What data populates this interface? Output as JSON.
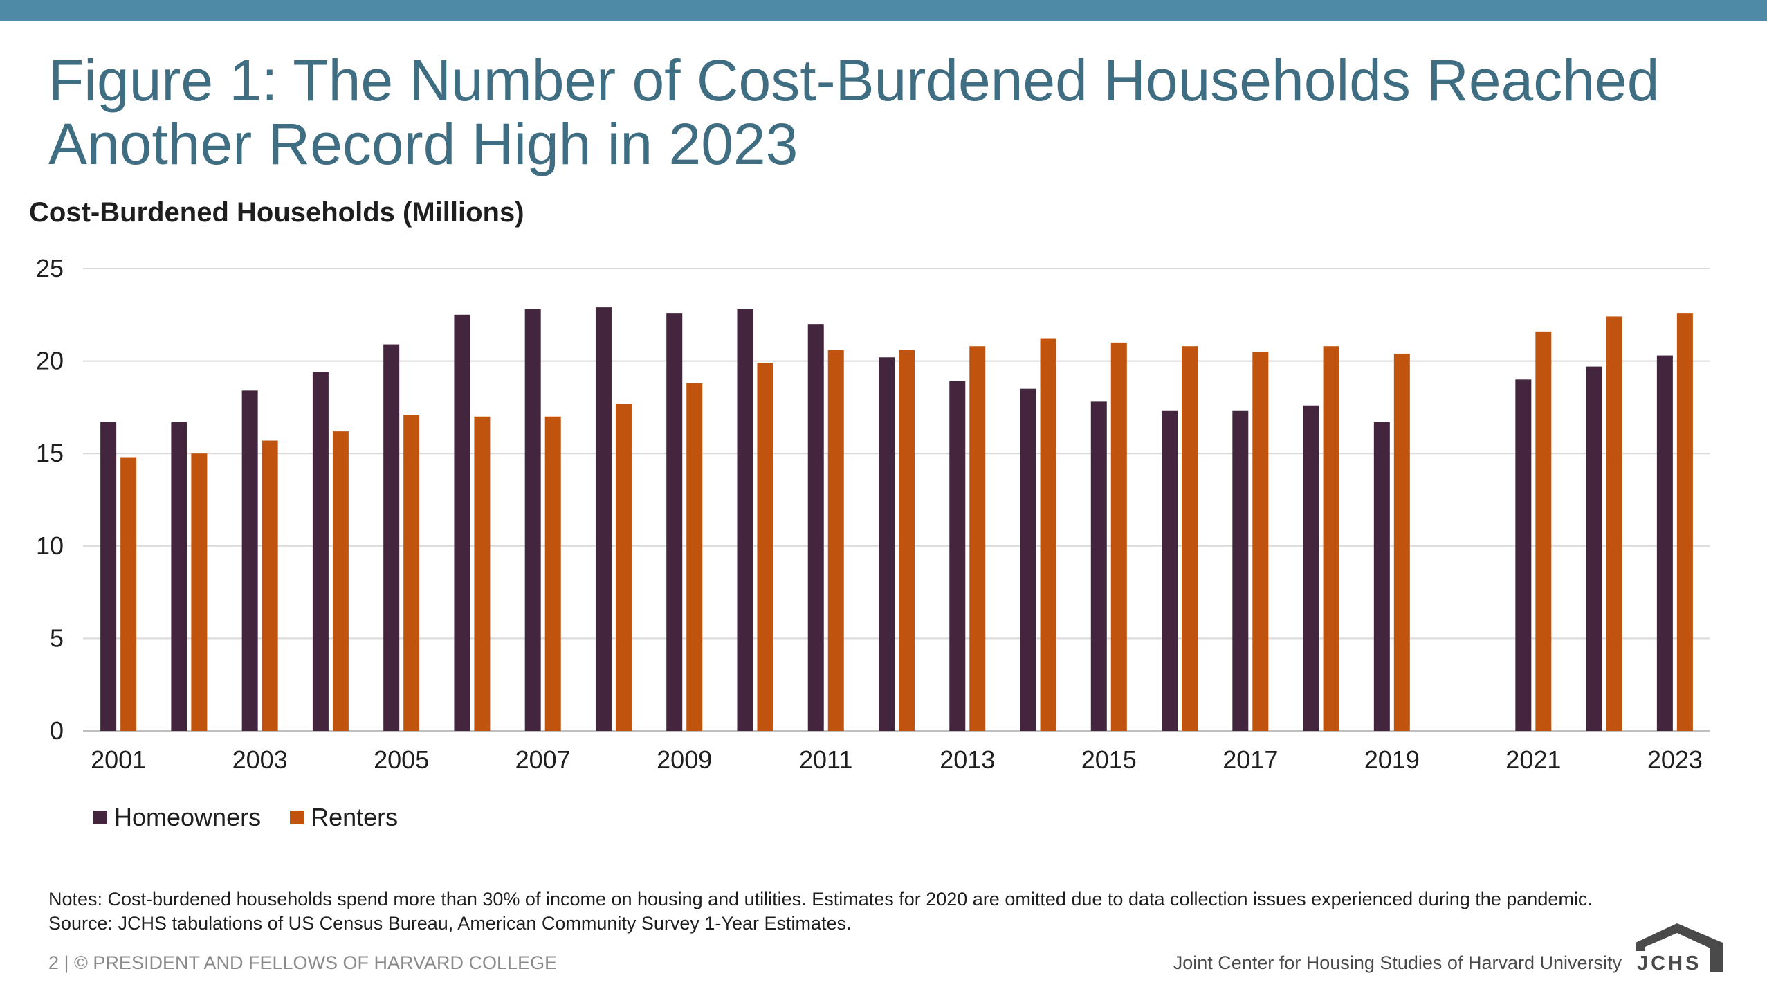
{
  "title": "Figure 1: The Number of Cost-Burdened Households Reached Another Record High in 2023",
  "notes": "Notes: Cost-burdened households spend more than 30% of income on housing and utilities. Estimates for 2020 are omitted due to data collection issues experienced during the pandemic.",
  "source": "Source: JCHS tabulations of US Census Bureau, American Community Survey 1-Year Estimates.",
  "footer": {
    "left": "2 | © PRESIDENT AND FELLOWS OF HARVARD COLLEGE",
    "right": "Joint Center for Housing Studies of Harvard University",
    "logo_text": "JCHS"
  },
  "colors": {
    "accent_band": "#4e8aa6",
    "homeowners": "#43263d",
    "renters": "#c0530d",
    "grid": "#d9d9d9"
  },
  "chart_data": {
    "type": "bar",
    "title": "",
    "ylabel": "Cost-Burdened Households (Millions)",
    "xlabel": "",
    "categories": [
      "2001",
      "2002",
      "2003",
      "2004",
      "2005",
      "2006",
      "2007",
      "2008",
      "2009",
      "2010",
      "2011",
      "2012",
      "2013",
      "2014",
      "2015",
      "2016",
      "2017",
      "2018",
      "2019",
      "2020",
      "2021",
      "2022",
      "2023"
    ],
    "x_tick_labels": [
      "2001",
      "",
      "2003",
      "",
      "2005",
      "",
      "2007",
      "",
      "2009",
      "",
      "2011",
      "",
      "2013",
      "",
      "2015",
      "",
      "2017",
      "",
      "2019",
      "",
      "2021",
      "",
      "2023"
    ],
    "series": [
      {
        "name": "Homeowners",
        "color": "#43263d",
        "values": [
          16.7,
          16.7,
          18.4,
          19.4,
          20.9,
          22.5,
          22.8,
          22.9,
          22.6,
          22.8,
          22.0,
          20.2,
          18.9,
          18.5,
          17.8,
          17.3,
          17.3,
          17.6,
          16.7,
          null,
          19.0,
          19.7,
          20.3
        ]
      },
      {
        "name": "Renters",
        "color": "#c0530d",
        "values": [
          14.8,
          15.0,
          15.7,
          16.2,
          17.1,
          17.0,
          17.0,
          17.7,
          18.8,
          19.9,
          20.6,
          20.6,
          20.8,
          21.2,
          21.0,
          20.8,
          20.5,
          20.8,
          20.4,
          null,
          21.6,
          22.4,
          22.6
        ]
      }
    ],
    "ylim": [
      0,
      25
    ],
    "yticks": [
      "0",
      "5",
      "10",
      "15",
      "20",
      "25"
    ],
    "grid": true,
    "legend": "bottom-left"
  }
}
